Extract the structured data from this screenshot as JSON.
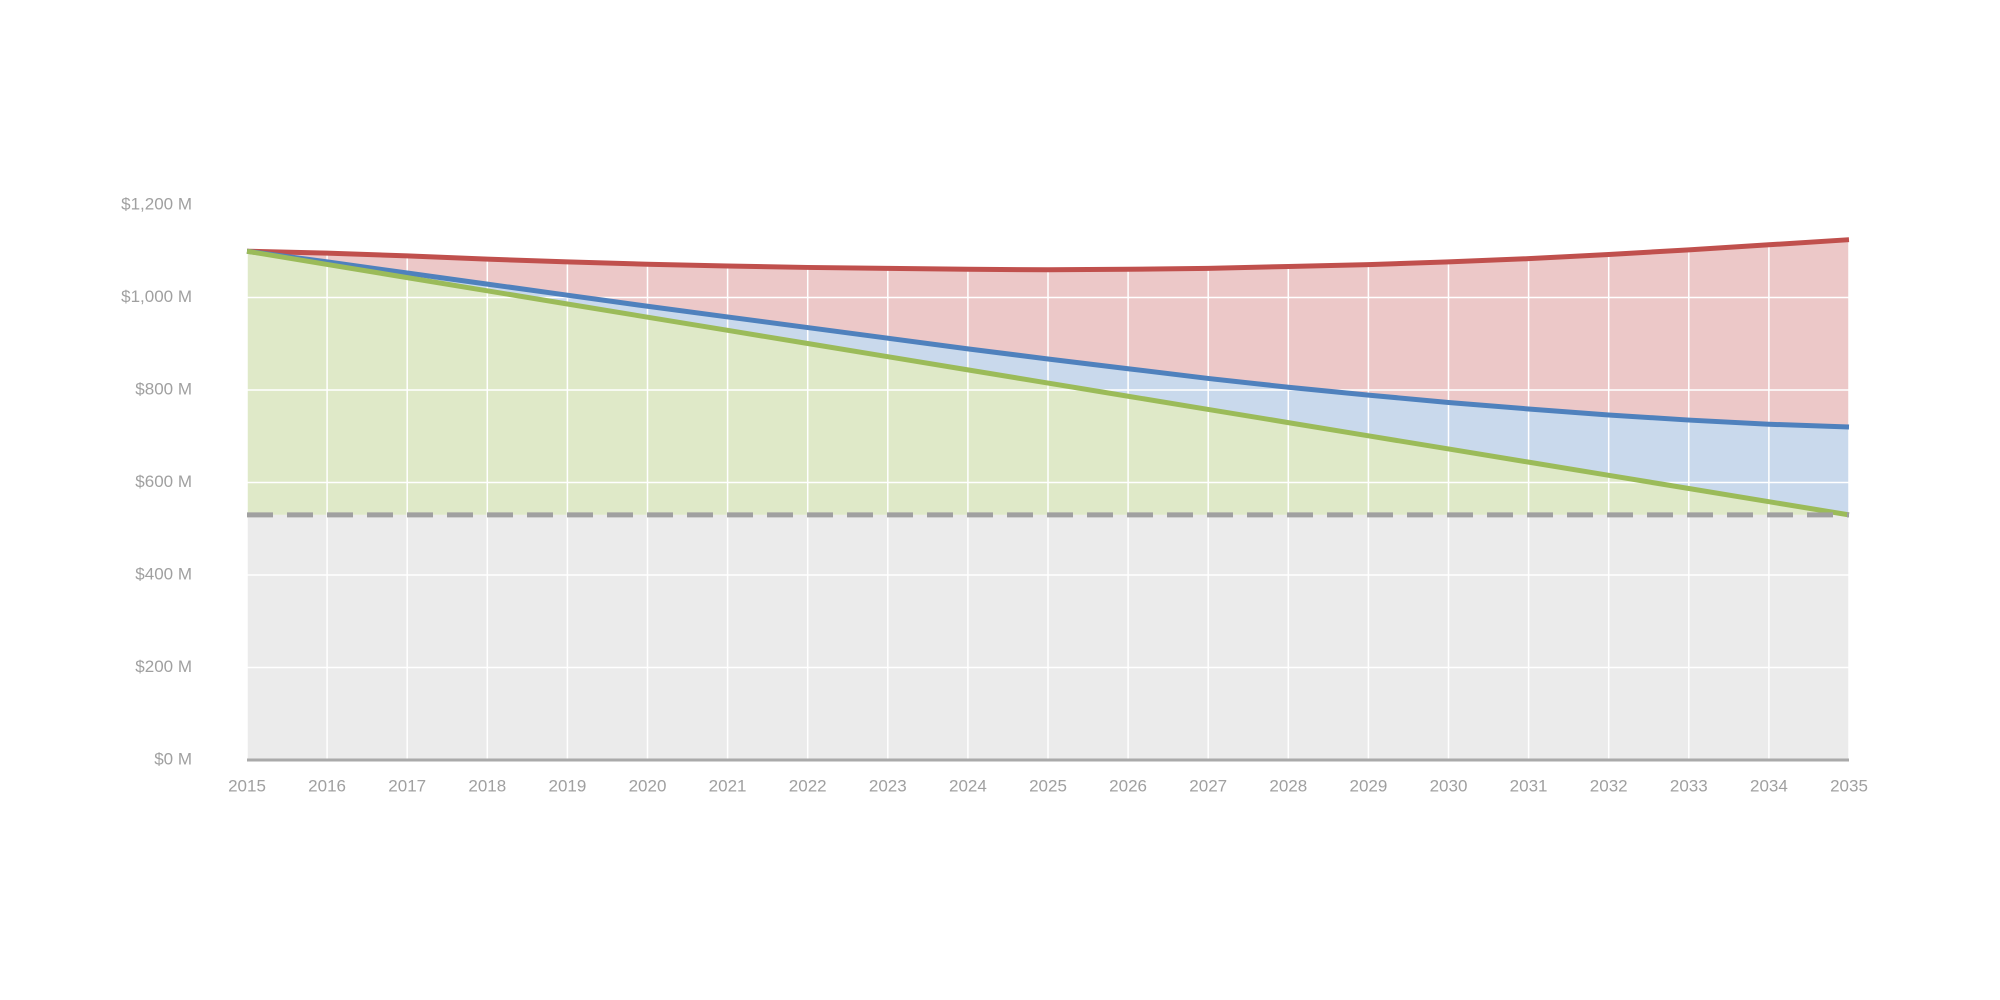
{
  "chart_data": {
    "type": "area",
    "x": [
      2015,
      2016,
      2017,
      2018,
      2019,
      2020,
      2021,
      2022,
      2023,
      2024,
      2025,
      2026,
      2027,
      2028,
      2029,
      2030,
      2031,
      2032,
      2033,
      2034,
      2035
    ],
    "series": [
      {
        "color": "#c0504d",
        "fill": "#ecc8c8",
        "values": [
          1100,
          1096,
          1090,
          1083,
          1077,
          1072,
          1068,
          1065,
          1063,
          1061,
          1060,
          1061,
          1063,
          1067,
          1071,
          1077,
          1084,
          1093,
          1103,
          1114,
          1125
        ]
      },
      {
        "color": "#4f81bd",
        "fill": "#c9d9ec",
        "values": [
          1100,
          1077,
          1053,
          1029,
          1005,
          981,
          958,
          935,
          912,
          889,
          867,
          846,
          825,
          806,
          789,
          773,
          759,
          746,
          735,
          726,
          720
        ]
      },
      {
        "color": "#9bbb59",
        "fill": "#dfe9c8",
        "values": [
          1100,
          1071.5,
          1043,
          1014.5,
          986,
          957.5,
          929,
          900.5,
          872,
          843.5,
          815,
          786.5,
          758,
          729.5,
          701,
          672.5,
          644,
          615.5,
          587,
          558.5,
          530
        ]
      }
    ],
    "reference_line": {
      "value": 530,
      "color": "#a0a0a0",
      "fill": "#ebebeb",
      "dashed": true
    },
    "xlim": [
      2015,
      2035
    ],
    "xticks": [
      2015,
      2016,
      2017,
      2018,
      2019,
      2020,
      2021,
      2022,
      2023,
      2024,
      2025,
      2026,
      2027,
      2028,
      2029,
      2030,
      2031,
      2032,
      2033,
      2034,
      2035
    ],
    "ylim": [
      0,
      1200
    ],
    "yticks": [
      {
        "value": 0,
        "label": "$0 M"
      },
      {
        "value": 200,
        "label": "$200 M"
      },
      {
        "value": 400,
        "label": "$400 M"
      },
      {
        "value": 600,
        "label": "$600 M"
      },
      {
        "value": 800,
        "label": "$800 M"
      },
      {
        "value": 1000,
        "label": "$1,000 M"
      },
      {
        "value": 1200,
        "label": "$1,200 M"
      }
    ],
    "grid": true
  }
}
